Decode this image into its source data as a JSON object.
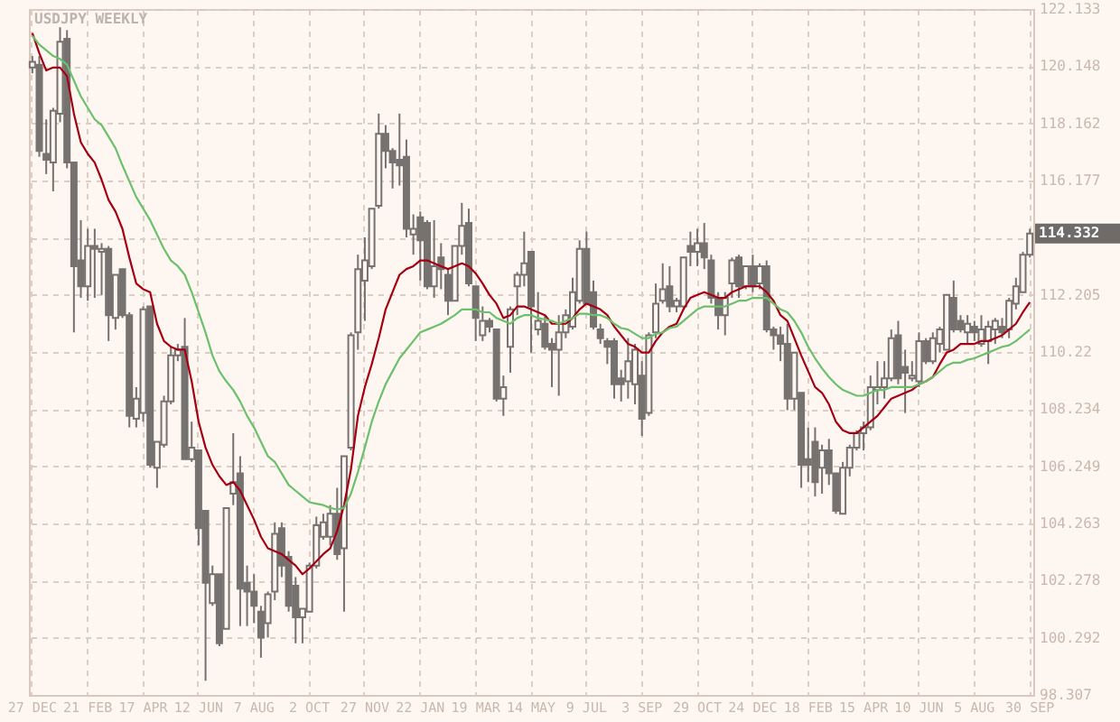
{
  "chart_data": {
    "type": "candlestick",
    "title": "USDJPY WEEKLY",
    "categories": [
      "27 DEC",
      null,
      null,
      null,
      null,
      null,
      null,
      null,
      "21 FEB",
      null,
      null,
      null,
      null,
      null,
      null,
      null,
      "17 APR",
      null,
      null,
      null,
      null,
      null,
      null,
      null,
      "12 JUN",
      null,
      null,
      null,
      null,
      null,
      null,
      null,
      "7 AUG",
      null,
      null,
      null,
      null,
      null,
      null,
      null,
      "2 OCT",
      null,
      null,
      null,
      null,
      null,
      null,
      null,
      "27 NOV",
      null,
      null,
      null,
      null,
      null,
      null,
      null,
      "22 JAN",
      null,
      null,
      null,
      null,
      null,
      null,
      null,
      "19 MAR",
      null,
      null,
      null,
      null,
      null,
      null,
      null,
      "14 MAY",
      null,
      null,
      null,
      null,
      null,
      null,
      null,
      "9 JUL",
      null,
      null,
      null,
      null,
      null,
      null,
      null,
      "3 SEP",
      null,
      null,
      null,
      null,
      null,
      null,
      null,
      "29 OCT",
      null,
      null,
      null,
      null,
      null,
      null,
      null,
      "24 DEC",
      null,
      null,
      null,
      null,
      null,
      null,
      null,
      "18 FEB",
      null,
      null,
      null,
      null,
      null,
      null,
      null,
      "15 APR",
      null,
      null,
      null,
      null,
      null,
      null,
      null,
      "10 JUN",
      null,
      null,
      null,
      null,
      null,
      null,
      null,
      "5 AUG",
      null,
      null,
      null,
      null,
      null,
      null,
      null,
      "30 SEP"
    ],
    "ohlc": [
      [
        120.1,
        120.5,
        119.9,
        120.3
      ],
      [
        120.2,
        120.5,
        117.0,
        117.2
      ],
      [
        117.1,
        118.3,
        116.4,
        116.9
      ],
      [
        116.8,
        118.7,
        115.8,
        118.6
      ],
      [
        118.5,
        121.5,
        118.2,
        121.0
      ],
      [
        121.1,
        121.4,
        116.6,
        116.8
      ],
      [
        116.8,
        116.8,
        110.9,
        113.2
      ],
      [
        113.4,
        114.8,
        112.1,
        112.5
      ],
      [
        112.5,
        114.5,
        112.0,
        113.9
      ],
      [
        113.9,
        114.5,
        112.1,
        113.8
      ],
      [
        113.7,
        114.0,
        112.2,
        113.8
      ],
      [
        113.8,
        113.9,
        110.6,
        111.5
      ],
      [
        111.4,
        112.9,
        111.0,
        112.9
      ],
      [
        113.1,
        113.1,
        111.4,
        111.5
      ],
      [
        111.5,
        111.6,
        107.6,
        108.0
      ],
      [
        107.9,
        109.0,
        107.6,
        108.6
      ],
      [
        108.1,
        111.8,
        107.8,
        111.7
      ],
      [
        111.8,
        111.8,
        106.2,
        106.3
      ],
      [
        106.2,
        107.1,
        105.5,
        107.1
      ],
      [
        107.0,
        108.7,
        106.9,
        108.5
      ],
      [
        108.5,
        110.4,
        108.4,
        110.1
      ],
      [
        110.1,
        110.5,
        109.9,
        110.3
      ],
      [
        110.4,
        111.4,
        106.5,
        106.5
      ],
      [
        106.5,
        107.8,
        106.4,
        106.9
      ],
      [
        106.8,
        106.8,
        103.5,
        104.1
      ],
      [
        104.7,
        104.7,
        98.8,
        102.2
      ],
      [
        101.5,
        102.8,
        101.4,
        102.5
      ],
      [
        102.5,
        102.5,
        100.0,
        100.1
      ],
      [
        100.6,
        104.8,
        100.6,
        104.8
      ],
      [
        105.3,
        107.4,
        104.9,
        105.7
      ],
      [
        106.0,
        106.6,
        100.7,
        102.0
      ],
      [
        102.2,
        102.8,
        100.7,
        101.9
      ],
      [
        101.9,
        102.5,
        100.8,
        101.4
      ],
      [
        101.2,
        101.4,
        99.6,
        100.3
      ],
      [
        100.8,
        101.9,
        100.3,
        101.8
      ],
      [
        101.9,
        104.3,
        101.6,
        103.9
      ],
      [
        104.1,
        104.3,
        102.4,
        102.8
      ],
      [
        103.1,
        103.3,
        101.2,
        101.4
      ],
      [
        102.1,
        102.4,
        100.1,
        101.0
      ],
      [
        101.0,
        101.3,
        100.1,
        101.3
      ],
      [
        101.2,
        102.9,
        101.2,
        102.8
      ],
      [
        102.8,
        104.5,
        102.7,
        104.2
      ],
      [
        103.8,
        104.6,
        103.7,
        104.3
      ],
      [
        103.8,
        104.9,
        103.5,
        104.6
      ],
      [
        104.6,
        105.5,
        103.0,
        103.2
      ],
      [
        103.4,
        106.6,
        101.2,
        106.6
      ],
      [
        106.9,
        110.9,
        106.8,
        110.8
      ],
      [
        110.9,
        113.6,
        110.3,
        113.1
      ],
      [
        112.7,
        114.2,
        111.3,
        113.4
      ],
      [
        113.2,
        115.2,
        113.1,
        115.2
      ],
      [
        115.3,
        118.5,
        115.2,
        117.8
      ],
      [
        117.8,
        118.1,
        116.6,
        117.2
      ],
      [
        117.2,
        117.3,
        115.9,
        116.8
      ],
      [
        116.9,
        118.5,
        116.0,
        116.7
      ],
      [
        117.0,
        117.6,
        114.2,
        114.5
      ],
      [
        114.3,
        115.0,
        113.6,
        114.5
      ],
      [
        114.9,
        115.1,
        112.7,
        114.1
      ],
      [
        114.7,
        114.8,
        112.4,
        112.5
      ],
      [
        112.5,
        114.8,
        112.1,
        113.2
      ],
      [
        113.5,
        114.0,
        112.4,
        113.1
      ],
      [
        112.9,
        113.1,
        111.5,
        112.0
      ],
      [
        112.0,
        113.9,
        112.0,
        113.9
      ],
      [
        113.9,
        115.4,
        113.6,
        114.6
      ],
      [
        114.7,
        115.2,
        112.5,
        112.6
      ],
      [
        112.5,
        112.5,
        110.6,
        111.4
      ],
      [
        110.8,
        111.8,
        110.6,
        111.3
      ],
      [
        111.3,
        111.4,
        110.9,
        111.1
      ],
      [
        111.0,
        111.0,
        108.5,
        108.6
      ],
      [
        108.6,
        109.4,
        108.0,
        109.0
      ],
      [
        110.4,
        111.8,
        109.5,
        111.7
      ],
      [
        112.5,
        113.0,
        111.5,
        112.9
      ],
      [
        112.9,
        114.4,
        112.5,
        113.3
      ],
      [
        113.7,
        113.7,
        110.2,
        111.8
      ],
      [
        111.0,
        112.3,
        110.8,
        111.3
      ],
      [
        111.2,
        111.5,
        110.3,
        110.4
      ],
      [
        110.5,
        110.7,
        109.0,
        110.3
      ],
      [
        110.3,
        111.5,
        108.7,
        110.9
      ],
      [
        110.9,
        111.7,
        110.7,
        111.5
      ],
      [
        111.1,
        112.8,
        111.0,
        112.3
      ],
      [
        112.0,
        114.1,
        111.9,
        113.8
      ],
      [
        113.8,
        114.4,
        111.9,
        111.9
      ],
      [
        112.3,
        112.7,
        111.0,
        111.1
      ],
      [
        111.0,
        111.2,
        110.5,
        110.7
      ],
      [
        110.6,
        110.7,
        109.8,
        110.4
      ],
      [
        110.6,
        110.7,
        108.6,
        109.1
      ],
      [
        109.3,
        109.6,
        108.5,
        109.1
      ],
      [
        109.2,
        110.7,
        108.6,
        109.9
      ],
      [
        109.1,
        110.5,
        108.4,
        110.3
      ],
      [
        109.4,
        109.9,
        107.3,
        107.9
      ],
      [
        108.1,
        110.9,
        108.0,
        110.8
      ],
      [
        110.9,
        112.6,
        110.7,
        111.9
      ],
      [
        112.0,
        113.3,
        111.9,
        112.4
      ],
      [
        112.5,
        113.2,
        111.6,
        111.8
      ],
      [
        111.8,
        112.1,
        111.6,
        112.0
      ],
      [
        111.8,
        113.5,
        111.7,
        113.5
      ],
      [
        113.9,
        114.4,
        113.2,
        113.7
      ],
      [
        113.7,
        114.5,
        113.2,
        114.0
      ],
      [
        114.0,
        114.7,
        113.1,
        113.5
      ],
      [
        113.4,
        113.6,
        111.9,
        112.1
      ],
      [
        112.1,
        112.3,
        111.0,
        111.5
      ],
      [
        111.5,
        112.3,
        110.8,
        112.1
      ],
      [
        112.6,
        113.5,
        112.1,
        113.4
      ],
      [
        113.5,
        113.6,
        112.1,
        112.5
      ],
      [
        112.5,
        113.2,
        112.4,
        113.2
      ],
      [
        113.2,
        113.6,
        112.3,
        112.5
      ],
      [
        112.6,
        113.3,
        112.4,
        113.2
      ],
      [
        113.2,
        113.4,
        110.9,
        111.0
      ],
      [
        111.0,
        111.1,
        110.3,
        110.8
      ],
      [
        110.8,
        111.1,
        109.9,
        110.5
      ],
      [
        110.5,
        111.2,
        108.2,
        108.6
      ],
      [
        108.6,
        110.2,
        108.2,
        110.2
      ],
      [
        108.8,
        108.8,
        105.5,
        106.3
      ],
      [
        106.5,
        107.6,
        105.7,
        106.3
      ],
      [
        107.1,
        107.6,
        105.2,
        105.7
      ],
      [
        106.2,
        107.0,
        105.3,
        106.8
      ],
      [
        106.8,
        107.2,
        105.6,
        106.0
      ],
      [
        106.0,
        106.0,
        104.6,
        104.7
      ],
      [
        104.6,
        106.4,
        104.6,
        106.2
      ],
      [
        106.2,
        107.0,
        105.9,
        106.9
      ],
      [
        106.9,
        107.5,
        106.8,
        107.4
      ],
      [
        107.4,
        107.8,
        106.8,
        107.6
      ],
      [
        107.6,
        109.4,
        107.5,
        109.0
      ],
      [
        108.9,
        109.9,
        108.4,
        109.0
      ],
      [
        109.0,
        109.9,
        108.6,
        109.3
      ],
      [
        109.3,
        111.0,
        109.2,
        110.7
      ],
      [
        110.8,
        111.3,
        109.1,
        109.3
      ],
      [
        109.7,
        110.3,
        108.1,
        109.5
      ],
      [
        109.3,
        109.9,
        109.2,
        109.4
      ],
      [
        109.2,
        110.9,
        109.0,
        110.6
      ],
      [
        110.6,
        110.7,
        109.8,
        109.9
      ],
      [
        109.9,
        110.9,
        109.8,
        110.7
      ],
      [
        110.5,
        111.1,
        110.2,
        111.0
      ],
      [
        110.3,
        112.2,
        110.3,
        112.2
      ],
      [
        112.1,
        112.7,
        110.9,
        111.0
      ],
      [
        111.3,
        111.5,
        110.9,
        111.0
      ],
      [
        110.9,
        111.5,
        110.5,
        111.2
      ],
      [
        111.1,
        111.3,
        110.6,
        110.9
      ],
      [
        110.5,
        111.5,
        110.4,
        111.0
      ],
      [
        110.6,
        111.3,
        109.8,
        111.1
      ],
      [
        111.0,
        111.4,
        110.5,
        111.3
      ],
      [
        111.1,
        111.4,
        110.7,
        110.9
      ],
      [
        111.0,
        112.1,
        110.7,
        112.0
      ],
      [
        111.9,
        112.8,
        111.7,
        112.5
      ],
      [
        112.3,
        113.7,
        112.3,
        113.6
      ],
      [
        113.6,
        114.5,
        113.5,
        114.332
      ]
    ],
    "series": [
      {
        "type": "line",
        "color": "#a50012",
        "values": [
          121.3,
          120.6,
          120.0,
          120.1,
          120.1,
          119.8,
          118.5,
          117.5,
          117.1,
          116.8,
          116.2,
          115.5,
          115.1,
          114.5,
          113.5,
          112.6,
          112.4,
          112.3,
          111.2,
          110.6,
          110.4,
          110.3,
          110.3,
          109.2,
          107.8,
          106.9,
          106.3,
          105.9,
          105.6,
          105.7,
          105.4,
          104.9,
          104.4,
          103.8,
          103.4,
          103.3,
          103.2,
          103.0,
          102.8,
          102.5,
          102.7,
          102.95,
          103.2,
          103.4,
          104.0,
          104.9,
          106.15,
          108.0,
          109.0,
          109.8,
          110.7,
          111.7,
          112.3,
          112.9,
          113.1,
          113.2,
          113.4,
          113.4,
          113.3,
          113.2,
          113.1,
          113.2,
          113.3,
          113.2,
          112.95,
          112.6,
          112.2,
          111.9,
          111.4,
          111.5,
          111.8,
          111.8,
          111.7,
          111.6,
          111.5,
          111.2,
          111.2,
          111.2,
          111.4,
          111.7,
          111.9,
          111.8,
          111.7,
          111.5,
          111.1,
          110.8,
          110.5,
          110.4,
          110.2,
          110.2,
          110.6,
          110.9,
          111.1,
          111.2,
          111.7,
          112.1,
          112.2,
          112.3,
          112.2,
          112.1,
          112.1,
          112.3,
          112.4,
          112.5,
          112.5,
          112.5,
          112.3,
          112.0,
          111.5,
          111.3,
          110.7,
          110.1,
          109.55,
          109.0,
          108.8,
          108.4,
          107.8,
          107.5,
          107.4,
          107.4,
          107.6,
          107.8,
          108.0,
          108.3,
          108.6,
          108.7,
          108.8,
          108.9,
          109.1,
          109.2,
          109.35,
          109.8,
          110.2,
          110.3,
          110.5,
          110.5,
          110.5,
          110.6,
          110.6,
          110.7,
          110.8,
          111.0,
          111.2,
          111.6,
          111.95
        ]
      },
      {
        "type": "line",
        "color": "#6cc06c",
        "values": [
          121.2,
          120.9,
          120.7,
          120.5,
          120.4,
          120.2,
          119.65,
          119.1,
          118.7,
          118.3,
          118.1,
          117.7,
          117.3,
          116.7,
          116.15,
          115.6,
          115.2,
          114.8,
          114.3,
          113.8,
          113.4,
          113.2,
          112.9,
          112.3,
          111.6,
          110.9,
          110.1,
          109.55,
          109.2,
          108.9,
          108.5,
          108.0,
          107.6,
          107.1,
          106.6,
          106.4,
          106.0,
          105.6,
          105.4,
          105.2,
          105.0,
          104.95,
          104.9,
          104.8,
          104.75,
          104.8,
          105.3,
          106.05,
          106.9,
          107.8,
          108.5,
          109.1,
          109.55,
          110.0,
          110.3,
          110.6,
          110.9,
          111.0,
          111.1,
          111.2,
          111.35,
          111.5,
          111.7,
          111.7,
          111.7,
          111.6,
          111.6,
          111.4,
          111.3,
          111.2,
          111.4,
          111.5,
          111.5,
          111.4,
          111.35,
          111.3,
          111.2,
          111.3,
          111.4,
          111.55,
          111.55,
          111.5,
          111.5,
          111.4,
          111.2,
          111.05,
          111.0,
          110.85,
          110.7,
          110.7,
          110.85,
          110.9,
          111.05,
          111.1,
          111.3,
          111.5,
          111.7,
          111.8,
          111.8,
          111.8,
          111.8,
          111.9,
          112.0,
          112.0,
          112.1,
          112.1,
          112.1,
          111.9,
          111.7,
          111.6,
          111.3,
          110.9,
          110.4,
          110.0,
          109.65,
          109.35,
          109.1,
          108.9,
          108.8,
          108.7,
          108.7,
          108.8,
          108.9,
          108.9,
          109.0,
          109.0,
          109.0,
          109.0,
          109.1,
          109.2,
          109.35,
          109.55,
          109.75,
          109.85,
          109.85,
          109.95,
          110.0,
          110.1,
          110.2,
          110.3,
          110.4,
          110.45,
          110.6,
          110.8,
          111.0
        ]
      }
    ],
    "annotations": [
      "114.332"
    ],
    "ylim": [
      98.307,
      122.133
    ],
    "yticks": [
      98.307,
      100.292,
      102.278,
      104.263,
      106.249,
      108.234,
      110.22,
      112.205,
      {
        "value": 114.191,
        "label": null
      },
      116.177,
      118.162,
      120.148,
      122.133
    ],
    "grid": true
  }
}
